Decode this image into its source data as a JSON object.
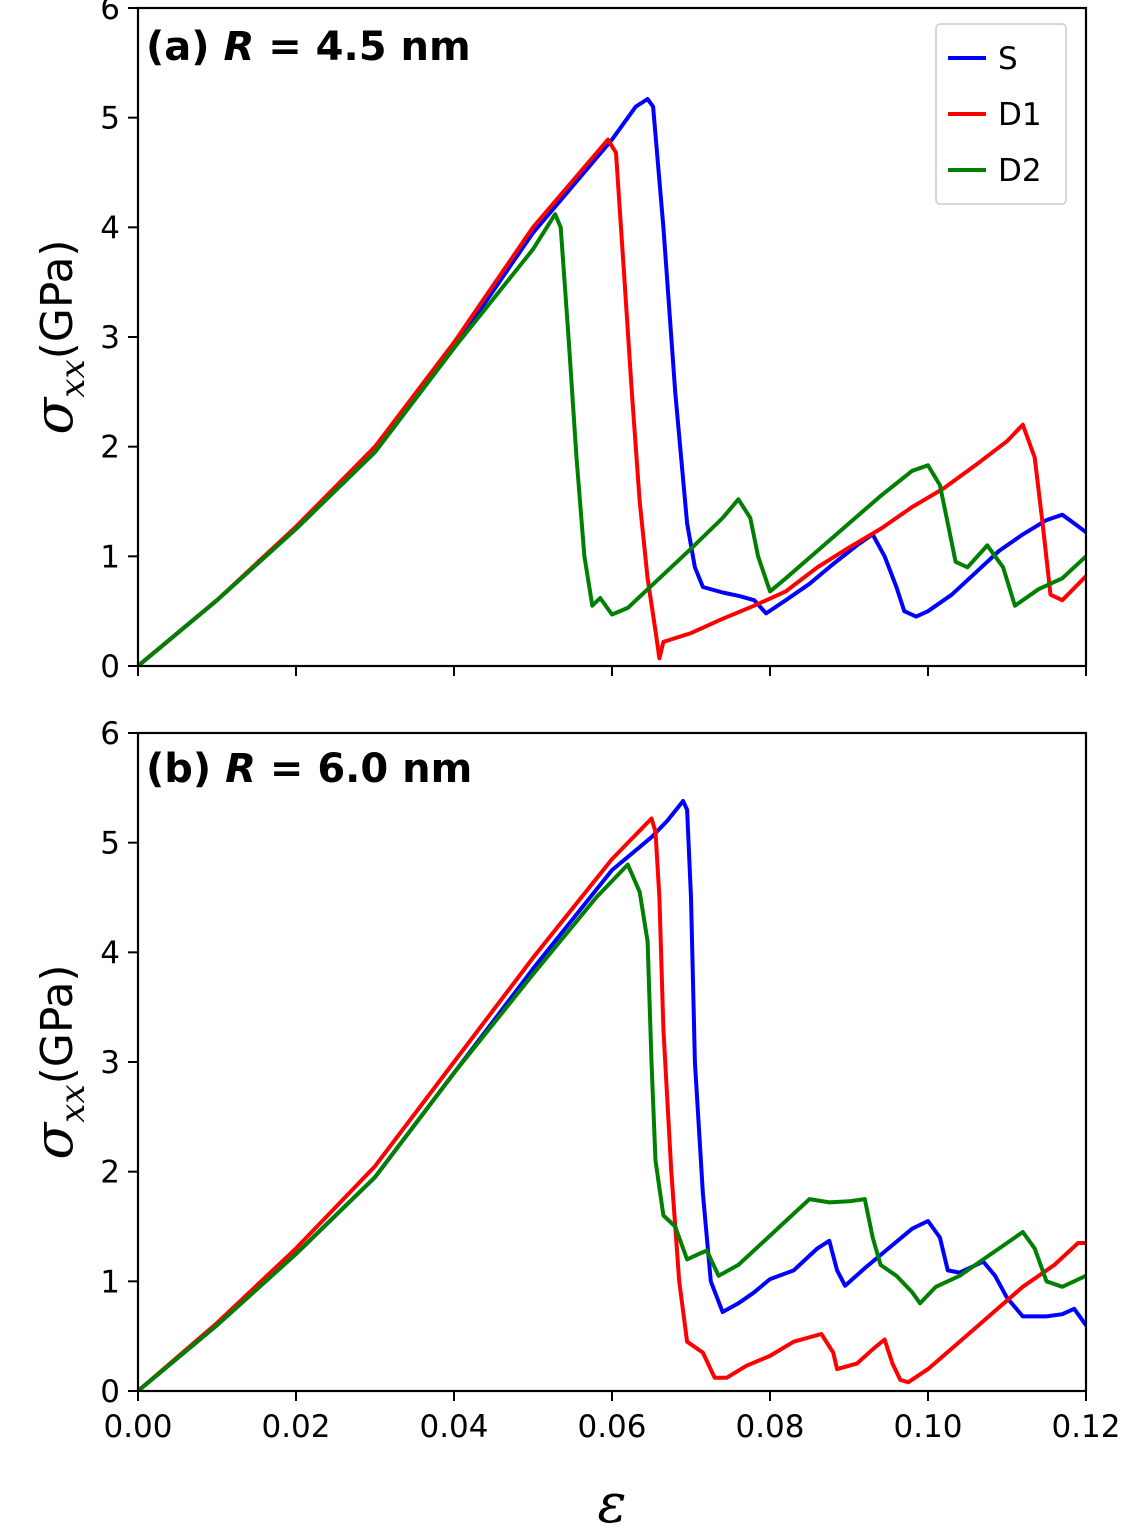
{
  "chart_data": [
    {
      "type": "line",
      "panel_label": "(a)",
      "radius_symbol": "R",
      "title_rest": " = 4.5 nm",
      "xlabel": "ε",
      "ylabel": "σ",
      "ylabel_sub": "xx",
      "ylabel_unit": "(GPa)",
      "xlim": [
        0,
        0.12
      ],
      "ylim": [
        0,
        6
      ],
      "xticks": [
        0,
        0.02,
        0.04,
        0.06,
        0.08,
        0.1,
        0.12
      ],
      "xtick_labels": [],
      "yticks": [
        0,
        1,
        2,
        3,
        4,
        5,
        6
      ],
      "ytick_labels": [
        "0",
        "1",
        "2",
        "3",
        "4",
        "5",
        "6"
      ],
      "legend_position": "top-right",
      "series": [
        {
          "name": "S",
          "color": "#0000ff",
          "points": [
            [
              0,
              0
            ],
            [
              0.01,
              0.6
            ],
            [
              0.02,
              1.25
            ],
            [
              0.03,
              1.95
            ],
            [
              0.04,
              2.9
            ],
            [
              0.05,
              3.95
            ],
            [
              0.06,
              4.8
            ],
            [
              0.063,
              5.1
            ],
            [
              0.0645,
              5.17
            ],
            [
              0.0652,
              5.1
            ],
            [
              0.0665,
              4.0
            ],
            [
              0.068,
              2.5
            ],
            [
              0.0695,
              1.3
            ],
            [
              0.0705,
              0.9
            ],
            [
              0.0715,
              0.72
            ],
            [
              0.074,
              0.67
            ],
            [
              0.076,
              0.64
            ],
            [
              0.078,
              0.6
            ],
            [
              0.0795,
              0.48
            ],
            [
              0.082,
              0.6
            ],
            [
              0.085,
              0.75
            ],
            [
              0.088,
              0.93
            ],
            [
              0.091,
              1.1
            ],
            [
              0.093,
              1.2
            ],
            [
              0.0945,
              1.0
            ],
            [
              0.096,
              0.72
            ],
            [
              0.097,
              0.5
            ],
            [
              0.0985,
              0.45
            ],
            [
              0.1,
              0.5
            ],
            [
              0.103,
              0.65
            ],
            [
              0.106,
              0.85
            ],
            [
              0.109,
              1.05
            ],
            [
              0.112,
              1.2
            ],
            [
              0.115,
              1.33
            ],
            [
              0.117,
              1.38
            ],
            [
              0.1185,
              1.3
            ],
            [
              0.12,
              1.22
            ]
          ]
        },
        {
          "name": "D1",
          "color": "#ff0000",
          "points": [
            [
              0,
              0
            ],
            [
              0.01,
              0.6
            ],
            [
              0.02,
              1.27
            ],
            [
              0.03,
              2.0
            ],
            [
              0.04,
              2.95
            ],
            [
              0.05,
              4.0
            ],
            [
              0.0595,
              4.8
            ],
            [
              0.0605,
              4.68
            ],
            [
              0.0615,
              3.6
            ],
            [
              0.0625,
              2.5
            ],
            [
              0.0635,
              1.5
            ],
            [
              0.0645,
              0.8
            ],
            [
              0.0655,
              0.32
            ],
            [
              0.066,
              0.07
            ],
            [
              0.0665,
              0.22
            ],
            [
              0.07,
              0.3
            ],
            [
              0.074,
              0.43
            ],
            [
              0.078,
              0.55
            ],
            [
              0.082,
              0.68
            ],
            [
              0.086,
              0.9
            ],
            [
              0.09,
              1.08
            ],
            [
              0.094,
              1.25
            ],
            [
              0.098,
              1.45
            ],
            [
              0.102,
              1.62
            ],
            [
              0.106,
              1.83
            ],
            [
              0.11,
              2.05
            ],
            [
              0.112,
              2.2
            ],
            [
              0.1135,
              1.9
            ],
            [
              0.1145,
              1.3
            ],
            [
              0.1155,
              0.65
            ],
            [
              0.117,
              0.6
            ],
            [
              0.12,
              0.82
            ]
          ]
        },
        {
          "name": "D2",
          "color": "#007f00",
          "points": [
            [
              0,
              0
            ],
            [
              0.01,
              0.6
            ],
            [
              0.02,
              1.25
            ],
            [
              0.03,
              1.95
            ],
            [
              0.04,
              2.9
            ],
            [
              0.05,
              3.8
            ],
            [
              0.0528,
              4.12
            ],
            [
              0.0535,
              4.0
            ],
            [
              0.0545,
              3.0
            ],
            [
              0.0555,
              1.9
            ],
            [
              0.0565,
              1.0
            ],
            [
              0.0575,
              0.55
            ],
            [
              0.0585,
              0.62
            ],
            [
              0.06,
              0.47
            ],
            [
              0.062,
              0.53
            ],
            [
              0.066,
              0.8
            ],
            [
              0.07,
              1.07
            ],
            [
              0.074,
              1.35
            ],
            [
              0.076,
              1.52
            ],
            [
              0.0775,
              1.35
            ],
            [
              0.0785,
              1.0
            ],
            [
              0.08,
              0.68
            ],
            [
              0.082,
              0.8
            ],
            [
              0.086,
              1.05
            ],
            [
              0.09,
              1.3
            ],
            [
              0.094,
              1.55
            ],
            [
              0.098,
              1.78
            ],
            [
              0.1,
              1.83
            ],
            [
              0.1015,
              1.65
            ],
            [
              0.1025,
              1.3
            ],
            [
              0.1035,
              0.95
            ],
            [
              0.105,
              0.9
            ],
            [
              0.1075,
              1.1
            ],
            [
              0.1095,
              0.9
            ],
            [
              0.111,
              0.55
            ],
            [
              0.114,
              0.7
            ],
            [
              0.117,
              0.8
            ],
            [
              0.12,
              1.0
            ]
          ]
        }
      ]
    },
    {
      "type": "line",
      "panel_label": "(b)",
      "radius_symbol": "R",
      "title_rest": " = 6.0 nm",
      "xlabel": "ε",
      "ylabel": "σ",
      "ylabel_sub": "xx",
      "ylabel_unit": "(GPa)",
      "xlim": [
        0,
        0.12
      ],
      "ylim": [
        0,
        6
      ],
      "xticks": [
        0,
        0.02,
        0.04,
        0.06,
        0.08,
        0.1,
        0.12
      ],
      "xtick_labels": [
        "0.00",
        "0.02",
        "0.04",
        "0.06",
        "0.08",
        "0.10",
        "0.12"
      ],
      "yticks": [
        0,
        1,
        2,
        3,
        4,
        5,
        6
      ],
      "ytick_labels": [
        "0",
        "1",
        "2",
        "3",
        "4",
        "5",
        "6"
      ],
      "series": [
        {
          "name": "S",
          "color": "#0000ff",
          "points": [
            [
              0,
              0
            ],
            [
              0.01,
              0.6
            ],
            [
              0.02,
              1.25
            ],
            [
              0.03,
              1.95
            ],
            [
              0.04,
              2.9
            ],
            [
              0.05,
              3.85
            ],
            [
              0.06,
              4.75
            ],
            [
              0.065,
              5.05
            ],
            [
              0.067,
              5.2
            ],
            [
              0.069,
              5.38
            ],
            [
              0.0695,
              5.3
            ],
            [
              0.07,
              4.5
            ],
            [
              0.0705,
              3.0
            ],
            [
              0.0715,
              1.8
            ],
            [
              0.0725,
              1.0
            ],
            [
              0.074,
              0.72
            ],
            [
              0.076,
              0.8
            ],
            [
              0.078,
              0.9
            ],
            [
              0.08,
              1.02
            ],
            [
              0.083,
              1.1
            ],
            [
              0.086,
              1.3
            ],
            [
              0.0875,
              1.37
            ],
            [
              0.0885,
              1.1
            ],
            [
              0.0895,
              0.96
            ],
            [
              0.092,
              1.12
            ],
            [
              0.095,
              1.3
            ],
            [
              0.098,
              1.48
            ],
            [
              0.1,
              1.55
            ],
            [
              0.1015,
              1.4
            ],
            [
              0.1025,
              1.1
            ],
            [
              0.104,
              1.08
            ],
            [
              0.107,
              1.18
            ],
            [
              0.1085,
              1.05
            ],
            [
              0.11,
              0.85
            ],
            [
              0.112,
              0.68
            ],
            [
              0.115,
              0.68
            ],
            [
              0.117,
              0.7
            ],
            [
              0.1185,
              0.75
            ],
            [
              0.12,
              0.6
            ]
          ]
        },
        {
          "name": "D1",
          "color": "#ff0000",
          "points": [
            [
              0,
              0
            ],
            [
              0.01,
              0.62
            ],
            [
              0.02,
              1.3
            ],
            [
              0.03,
              2.05
            ],
            [
              0.04,
              3.0
            ],
            [
              0.05,
              3.95
            ],
            [
              0.06,
              4.85
            ],
            [
              0.065,
              5.22
            ],
            [
              0.0655,
              5.1
            ],
            [
              0.066,
              4.5
            ],
            [
              0.0665,
              3.3
            ],
            [
              0.0675,
              2.0
            ],
            [
              0.0685,
              1.0
            ],
            [
              0.0695,
              0.45
            ],
            [
              0.0715,
              0.35
            ],
            [
              0.073,
              0.12
            ],
            [
              0.0745,
              0.12
            ],
            [
              0.077,
              0.23
            ],
            [
              0.08,
              0.32
            ],
            [
              0.083,
              0.45
            ],
            [
              0.0865,
              0.52
            ],
            [
              0.088,
              0.35
            ],
            [
              0.0885,
              0.2
            ],
            [
              0.091,
              0.25
            ],
            [
              0.093,
              0.38
            ],
            [
              0.0945,
              0.47
            ],
            [
              0.0955,
              0.25
            ],
            [
              0.0965,
              0.1
            ],
            [
              0.0975,
              0.08
            ],
            [
              0.1,
              0.2
            ],
            [
              0.104,
              0.45
            ],
            [
              0.108,
              0.7
            ],
            [
              0.112,
              0.95
            ],
            [
              0.116,
              1.15
            ],
            [
              0.119,
              1.35
            ],
            [
              0.12,
              1.35
            ]
          ]
        },
        {
          "name": "D2",
          "color": "#007f00",
          "points": [
            [
              0,
              0
            ],
            [
              0.01,
              0.6
            ],
            [
              0.02,
              1.25
            ],
            [
              0.03,
              1.95
            ],
            [
              0.04,
              2.9
            ],
            [
              0.05,
              3.8
            ],
            [
              0.058,
              4.5
            ],
            [
              0.062,
              4.8
            ],
            [
              0.0635,
              4.55
            ],
            [
              0.0645,
              4.1
            ],
            [
              0.065,
              3.0
            ],
            [
              0.0655,
              2.1
            ],
            [
              0.0665,
              1.6
            ],
            [
              0.068,
              1.5
            ],
            [
              0.0695,
              1.2
            ],
            [
              0.071,
              1.25
            ],
            [
              0.072,
              1.28
            ],
            [
              0.0735,
              1.05
            ],
            [
              0.076,
              1.15
            ],
            [
              0.079,
              1.35
            ],
            [
              0.082,
              1.55
            ],
            [
              0.085,
              1.75
            ],
            [
              0.0875,
              1.72
            ],
            [
              0.09,
              1.73
            ],
            [
              0.092,
              1.75
            ],
            [
              0.093,
              1.4
            ],
            [
              0.094,
              1.15
            ],
            [
              0.096,
              1.05
            ],
            [
              0.098,
              0.9
            ],
            [
              0.099,
              0.8
            ],
            [
              0.101,
              0.95
            ],
            [
              0.104,
              1.05
            ],
            [
              0.107,
              1.2
            ],
            [
              0.11,
              1.35
            ],
            [
              0.112,
              1.45
            ],
            [
              0.1135,
              1.3
            ],
            [
              0.115,
              1.0
            ],
            [
              0.117,
              0.95
            ],
            [
              0.12,
              1.05
            ]
          ]
        }
      ]
    }
  ]
}
